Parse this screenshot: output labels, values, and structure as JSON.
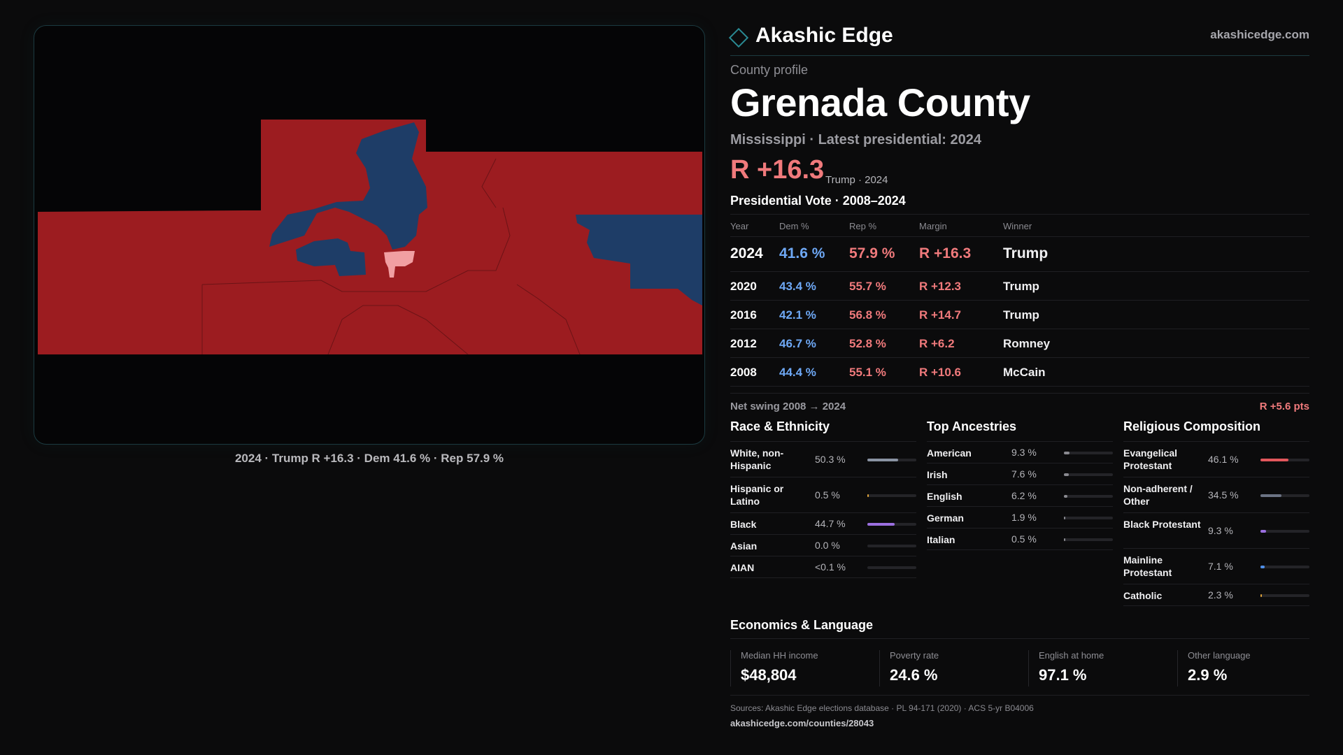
{
  "brand": {
    "name": "Akashic Edge",
    "url": "akashicedge.com"
  },
  "header": {
    "eyebrow": "County profile",
    "title": "Grenada County",
    "subtitle": "Mississippi · Latest presidential: 2024",
    "margin": "R +16.3",
    "margin_note": "Trump · 2024"
  },
  "map": {
    "caption": "2024 · Trump R +16.3 · Dem 41.6 % · Rep 57.9 %",
    "colors": {
      "rep": "#9c1c20",
      "dem": "#1e3d67",
      "lean_dem": "#f19fa2"
    }
  },
  "votes": {
    "title": "Presidential Vote · 2008–2024",
    "headers": {
      "year": "Year",
      "dem": "Dem %",
      "rep": "Rep %",
      "margin": "Margin",
      "winner": "Winner"
    },
    "rows": [
      {
        "year": "2024",
        "dem": "41.6 %",
        "rep": "57.9 %",
        "margin": "R +16.3",
        "winner": "Trump"
      },
      {
        "year": "2020",
        "dem": "43.4 %",
        "rep": "55.7 %",
        "margin": "R +12.3",
        "winner": "Trump"
      },
      {
        "year": "2016",
        "dem": "42.1 %",
        "rep": "56.8 %",
        "margin": "R +14.7",
        "winner": "Trump"
      },
      {
        "year": "2012",
        "dem": "46.7 %",
        "rep": "52.8 %",
        "margin": "R +6.2",
        "winner": "Romney"
      },
      {
        "year": "2008",
        "dem": "44.4 %",
        "rep": "55.1 %",
        "margin": "R +10.6",
        "winner": "McCain"
      }
    ],
    "swing_label": "Net swing 2008 → 2024",
    "swing_value": "R +5.6 pts"
  },
  "race": {
    "title": "Race & Ethnicity",
    "rows": [
      {
        "label": "White, non-Hispanic",
        "value": "50.3 %",
        "pct": 0.503,
        "color": "#8a93a3"
      },
      {
        "label": "Hispanic or Latino",
        "value": "0.5 %",
        "pct": 0.005,
        "color": "#e0a43a"
      },
      {
        "label": "Black",
        "value": "44.7 %",
        "pct": 0.447,
        "color": "#9b6fe0"
      },
      {
        "label": "Asian",
        "value": "0.0 %",
        "pct": 0.0,
        "color": "#5fb6a8"
      },
      {
        "label": "AIAN",
        "value": "<0.1 %",
        "pct": 0.0,
        "color": "#c98f5a"
      }
    ]
  },
  "ancestry": {
    "title": "Top Ancestries",
    "rows": [
      {
        "label": "American",
        "value": "9.3 %",
        "pct": 0.093,
        "color": "#8a8a90"
      },
      {
        "label": "Irish",
        "value": "7.6 %",
        "pct": 0.076,
        "color": "#8a8a90"
      },
      {
        "label": "English",
        "value": "6.2 %",
        "pct": 0.062,
        "color": "#8a8a90"
      },
      {
        "label": "German",
        "value": "1.9 %",
        "pct": 0.019,
        "color": "#8a8a90"
      },
      {
        "label": "Italian",
        "value": "0.5 %",
        "pct": 0.005,
        "color": "#8a8a90"
      }
    ]
  },
  "religion": {
    "title": "Religious Composition",
    "rows": [
      {
        "label": "Evangelical Protestant",
        "value": "46.1 %",
        "pct": 0.461,
        "color": "#e2575c"
      },
      {
        "label": "Non-adherent / Other",
        "value": "34.5 %",
        "pct": 0.345,
        "color": "#6b7384"
      },
      {
        "label": "Black Protestant",
        "value": "9.3 %",
        "pct": 0.093,
        "color": "#9b6fe0"
      },
      {
        "label": "Mainline Protestant",
        "value": "7.1 %",
        "pct": 0.071,
        "color": "#4f8fe8"
      },
      {
        "label": "Catholic",
        "value": "2.3 %",
        "pct": 0.023,
        "color": "#e0a43a"
      }
    ]
  },
  "economics": {
    "title": "Economics & Language",
    "cells": [
      {
        "label": "Median HH income",
        "value": "$48,804"
      },
      {
        "label": "Poverty rate",
        "value": "24.6 %"
      },
      {
        "label": "English at home",
        "value": "97.1 %"
      },
      {
        "label": "Other language",
        "value": "2.9 %"
      }
    ]
  },
  "footer": {
    "sources": "Sources: Akashic Edge elections database · PL 94-171 (2020) · ACS 5-yr B04006",
    "url": "akashicedge.com/counties/28043"
  }
}
